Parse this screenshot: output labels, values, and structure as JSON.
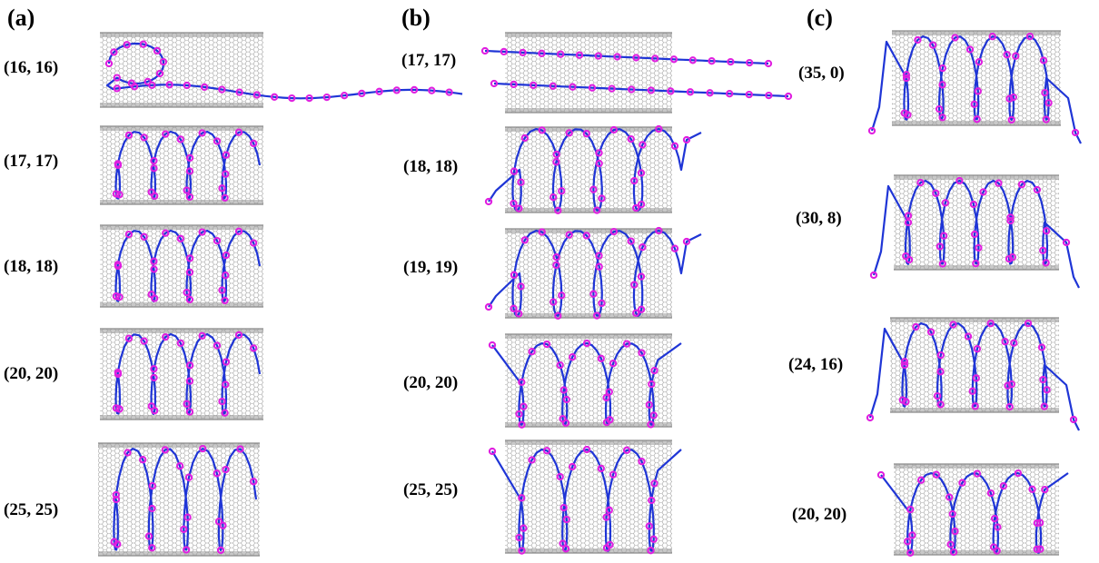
{
  "panels": [
    {
      "letter": "(a)",
      "tubes": [
        {
          "label": "(16, 16)",
          "morph": "loop-tail"
        },
        {
          "label": "(17, 17)",
          "morph": "helix-tight"
        },
        {
          "label": "(18, 18)",
          "morph": "helix-tight"
        },
        {
          "label": "(20, 20)",
          "morph": "helix-tight"
        },
        {
          "label": "(25, 25)",
          "morph": "helix-tight"
        }
      ]
    },
    {
      "letter": "(b)",
      "tubes": [
        {
          "label": "(17, 17)",
          "morph": "two-lines"
        },
        {
          "label": "(18, 18)",
          "morph": "helix-spill"
        },
        {
          "label": "(19, 19)",
          "morph": "helix-spill"
        },
        {
          "label": "(20, 20)",
          "morph": "helix-loose"
        },
        {
          "label": "(25, 25)",
          "morph": "helix-loose"
        }
      ]
    },
    {
      "letter": "(c)",
      "tubes": [
        {
          "label": "(35, 0)",
          "morph": "helix-tails"
        },
        {
          "label": "(30, 8)",
          "morph": "helix-tails"
        },
        {
          "label": "(24, 16)",
          "morph": "helix-tails"
        },
        {
          "label": "(20, 20)",
          "morph": "helix-loose"
        }
      ]
    }
  ],
  "colors": {
    "polymer_backbone": "#1f35d6",
    "polymer_ring": "#e01fe0",
    "nanotube": "#8a8a8a",
    "background": "#ffffff"
  }
}
